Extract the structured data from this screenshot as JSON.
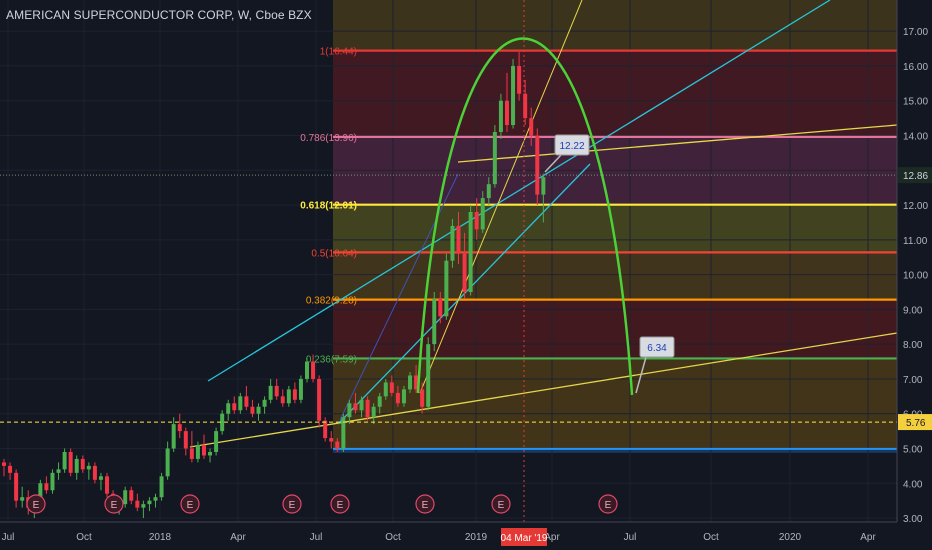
{
  "title": "AMERICAN SUPERCONDUCTOR CORP, W, Cboe BZX",
  "chart_data": {
    "type": "candlestick",
    "title": "AMERICAN SUPERCONDUCTOR CORP, W, Cboe BZX",
    "ylim": [
      2.4,
      17.2
    ],
    "y_ticks": [
      "3.00",
      "4.00",
      "5.00",
      "6.00",
      "7.00",
      "8.00",
      "9.00",
      "10.00",
      "11.00",
      "12.00",
      "13.00",
      "14.00",
      "15.00",
      "16.00",
      "17.00"
    ],
    "x_ticks": [
      "Jul",
      "Oct",
      "2018",
      "Apr",
      "Jul",
      "Oct",
      "2019",
      "Apr",
      "Jul",
      "Oct",
      "2020",
      "Apr"
    ],
    "highlight_date": "04 Mar '19",
    "current_price": "12.86",
    "support_price": "5.76",
    "fib_levels": [
      {
        "ratio": "1",
        "price": 16.44,
        "label": "1(16.44)",
        "color": "#e53935"
      },
      {
        "ratio": "0.786",
        "price": 13.96,
        "label": "0.786(13.96)",
        "color": "#e57399"
      },
      {
        "ratio": "0.618",
        "price": 12.01,
        "label": "0.618(12.01)",
        "color": "#ffeb3b"
      },
      {
        "ratio": "0.5",
        "price": 10.64,
        "label": "0.5(10.64)",
        "color": "#f44336"
      },
      {
        "ratio": "0.382",
        "price": 9.28,
        "label": "0.382(9.28)",
        "color": "#ff9800"
      },
      {
        "ratio": "0.236",
        "price": 7.59,
        "label": "0.236(7.59)",
        "color": "#4caf50"
      },
      {
        "ratio": "0",
        "price": 4.99,
        "label": "",
        "color": "#2196f3"
      }
    ],
    "annotations": [
      {
        "text": "12.22",
        "price": 12.22
      },
      {
        "text": "6.34",
        "price": 6.34
      }
    ],
    "earnings_label": "E",
    "candles": [
      [
        4.6,
        4.7,
        4.2,
        4.5
      ],
      [
        4.5,
        4.6,
        4.1,
        4.3
      ],
      [
        4.3,
        4.4,
        3.3,
        3.5
      ],
      [
        3.5,
        3.9,
        3.3,
        3.6
      ],
      [
        3.6,
        3.8,
        3.1,
        3.3
      ],
      [
        3.3,
        3.6,
        3.0,
        3.5
      ],
      [
        3.5,
        4.1,
        3.4,
        4.0
      ],
      [
        4.0,
        4.2,
        3.7,
        3.8
      ],
      [
        3.8,
        4.4,
        3.7,
        4.3
      ],
      [
        4.3,
        4.6,
        4.1,
        4.4
      ],
      [
        4.4,
        5.0,
        4.3,
        4.9
      ],
      [
        4.9,
        5.0,
        4.2,
        4.3
      ],
      [
        4.3,
        4.8,
        4.1,
        4.7
      ],
      [
        4.7,
        4.8,
        4.3,
        4.4
      ],
      [
        4.4,
        4.6,
        4.1,
        4.5
      ],
      [
        4.5,
        4.6,
        4.0,
        4.1
      ],
      [
        4.1,
        4.3,
        3.8,
        4.2
      ],
      [
        4.2,
        4.3,
        3.6,
        3.7
      ],
      [
        3.7,
        3.8,
        3.2,
        3.3
      ],
      [
        3.3,
        3.5,
        3.1,
        3.4
      ],
      [
        3.4,
        3.9,
        3.3,
        3.8
      ],
      [
        3.8,
        3.9,
        3.4,
        3.5
      ],
      [
        3.5,
        3.7,
        3.2,
        3.3
      ],
      [
        3.3,
        3.5,
        3.0,
        3.4
      ],
      [
        3.4,
        3.6,
        3.2,
        3.5
      ],
      [
        3.5,
        3.7,
        3.3,
        3.6
      ],
      [
        3.6,
        4.3,
        3.5,
        4.2
      ],
      [
        4.2,
        5.2,
        4.1,
        5.0
      ],
      [
        5.0,
        5.9,
        4.9,
        5.7
      ],
      [
        5.7,
        6.0,
        5.3,
        5.5
      ],
      [
        5.5,
        5.6,
        4.8,
        5.0
      ],
      [
        5.0,
        5.5,
        4.6,
        4.7
      ],
      [
        4.7,
        5.2,
        4.6,
        5.1
      ],
      [
        5.1,
        5.4,
        4.7,
        4.8
      ],
      [
        4.8,
        5.0,
        4.6,
        4.9
      ],
      [
        4.9,
        5.6,
        4.8,
        5.5
      ],
      [
        5.5,
        6.1,
        5.4,
        6.0
      ],
      [
        6.0,
        6.4,
        5.8,
        6.3
      ],
      [
        6.3,
        6.5,
        6.0,
        6.1
      ],
      [
        6.1,
        6.6,
        6.0,
        6.5
      ],
      [
        6.5,
        6.8,
        6.1,
        6.2
      ],
      [
        6.2,
        6.4,
        5.9,
        6.0
      ],
      [
        6.0,
        6.3,
        5.8,
        6.2
      ],
      [
        6.2,
        6.5,
        6.0,
        6.4
      ],
      [
        6.4,
        7.0,
        6.3,
        6.8
      ],
      [
        6.8,
        7.0,
        6.4,
        6.5
      ],
      [
        6.5,
        6.7,
        6.2,
        6.3
      ],
      [
        6.3,
        6.8,
        6.2,
        6.7
      ],
      [
        6.7,
        6.9,
        6.3,
        6.4
      ],
      [
        6.4,
        7.1,
        6.3,
        7.0
      ],
      [
        7.0,
        7.6,
        6.9,
        7.5
      ],
      [
        7.5,
        7.7,
        6.9,
        7.0
      ],
      [
        7.0,
        7.1,
        5.6,
        5.8
      ],
      [
        5.8,
        5.9,
        5.2,
        5.3
      ],
      [
        5.3,
        5.5,
        5.0,
        5.2
      ],
      [
        5.2,
        5.3,
        4.9,
        5.0
      ],
      [
        5.0,
        6.0,
        4.9,
        5.9
      ],
      [
        5.9,
        6.4,
        5.7,
        6.3
      ],
      [
        6.3,
        6.6,
        6.0,
        6.1
      ],
      [
        6.1,
        6.5,
        5.9,
        6.4
      ],
      [
        6.4,
        6.5,
        5.8,
        5.9
      ],
      [
        5.9,
        6.3,
        5.7,
        6.2
      ],
      [
        6.2,
        6.6,
        6.0,
        6.5
      ],
      [
        6.5,
        7.0,
        6.4,
        6.9
      ],
      [
        6.9,
        7.1,
        6.5,
        6.6
      ],
      [
        6.6,
        6.8,
        6.2,
        6.3
      ],
      [
        6.3,
        6.8,
        6.2,
        6.7
      ],
      [
        6.7,
        7.2,
        6.6,
        7.1
      ],
      [
        7.1,
        7.4,
        6.6,
        6.7
      ],
      [
        6.7,
        6.9,
        6.0,
        6.2
      ],
      [
        6.2,
        8.2,
        6.1,
        8.0
      ],
      [
        8.0,
        9.5,
        7.8,
        9.3
      ],
      [
        9.3,
        9.5,
        8.6,
        8.8
      ],
      [
        8.8,
        10.6,
        8.7,
        10.4
      ],
      [
        10.4,
        11.6,
        10.2,
        11.4
      ],
      [
        11.4,
        11.8,
        10.3,
        10.6
      ],
      [
        10.6,
        11.2,
        9.3,
        9.5
      ],
      [
        9.5,
        12.0,
        9.4,
        11.8
      ],
      [
        11.8,
        12.2,
        11.0,
        11.3
      ],
      [
        11.3,
        12.4,
        11.2,
        12.2
      ],
      [
        12.2,
        12.8,
        12.0,
        12.6
      ],
      [
        12.6,
        14.3,
        12.5,
        14.1
      ],
      [
        14.1,
        15.2,
        13.9,
        15.0
      ],
      [
        15.0,
        15.8,
        14.1,
        14.3
      ],
      [
        14.3,
        16.2,
        14.2,
        16.0
      ],
      [
        16.0,
        16.4,
        15.0,
        15.2
      ],
      [
        15.2,
        15.6,
        14.3,
        14.5
      ],
      [
        14.5,
        14.8,
        13.7,
        14.0
      ],
      [
        14.0,
        14.2,
        12.0,
        12.3
      ],
      [
        12.3,
        12.9,
        11.5,
        12.8
      ]
    ]
  }
}
